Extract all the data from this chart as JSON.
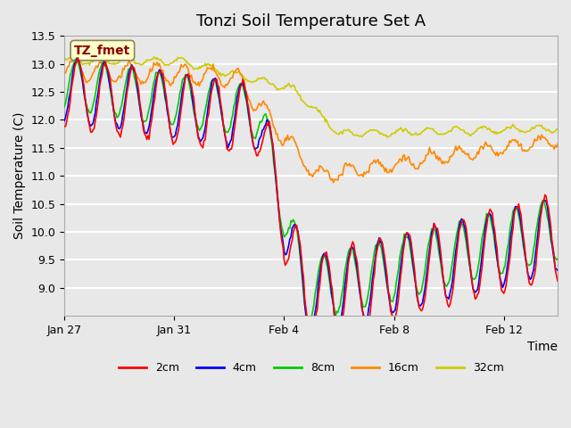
{
  "title": "Tonzi Soil Temperature Set A",
  "xlabel": "Time",
  "ylabel": "Soil Temperature (C)",
  "ylim": [
    8.5,
    13.5
  ],
  "yticks": [
    9.0,
    9.5,
    10.0,
    10.5,
    11.0,
    11.5,
    12.0,
    12.5,
    13.0,
    13.5
  ],
  "bg_color": "#e8e8e8",
  "plot_bg_color": "#e8e8e8",
  "grid_color": "#ffffff",
  "legend_label": "TZ_fmet",
  "legend_box_color": "#ffffcc",
  "legend_text_color": "#8b0000",
  "series_colors": {
    "2cm": "#ff0000",
    "4cm": "#0000ff",
    "8cm": "#00cc00",
    "16cm": "#ff8800",
    "32cm": "#cccc00"
  },
  "date_ticks": [
    "Jan 27",
    "Jan 31",
    "Feb 4",
    "Feb 8",
    "Feb 12"
  ],
  "date_tick_positions": [
    0,
    96,
    192,
    288,
    384
  ],
  "n_points": 432,
  "title_fontsize": 13,
  "axis_label_fontsize": 10,
  "tick_fontsize": 9
}
